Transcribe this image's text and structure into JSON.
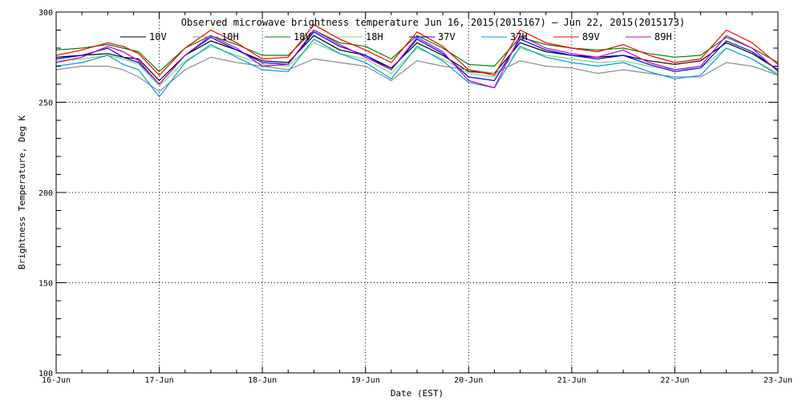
{
  "chart_data": {
    "type": "line",
    "title": "Observed microwave brightness temperature Jun 16, 2015(2015167) – Jun 22, 2015(2015173)",
    "xlabel": "Date (EST)",
    "ylabel": "Brightness Temperature, Deg K",
    "xlim": [
      0,
      7
    ],
    "ylim": [
      100,
      300
    ],
    "x_ticks": [
      {
        "v": 0,
        "label": "16-Jun"
      },
      {
        "v": 1,
        "label": "17-Jun"
      },
      {
        "v": 2,
        "label": "18-Jun"
      },
      {
        "v": 3,
        "label": "19-Jun"
      },
      {
        "v": 4,
        "label": "20-Jun"
      },
      {
        "v": 5,
        "label": "21-Jun"
      },
      {
        "v": 6,
        "label": "22-Jun"
      },
      {
        "v": 7,
        "label": "23-Jun"
      }
    ],
    "y_ticks": [
      {
        "v": 100,
        "label": "100"
      },
      {
        "v": 150,
        "label": "150"
      },
      {
        "v": 200,
        "label": "200"
      },
      {
        "v": 250,
        "label": "250"
      },
      {
        "v": 300,
        "label": "300"
      }
    ],
    "grid": true,
    "legend_position": "top",
    "x_points": [
      0,
      0.25,
      0.5,
      0.65,
      0.8,
      1.0,
      1.25,
      1.5,
      1.75,
      2.0,
      2.25,
      2.5,
      2.75,
      3.0,
      3.25,
      3.5,
      3.75,
      4.0,
      4.25,
      4.5,
      4.75,
      5.0,
      5.25,
      5.5,
      5.75,
      6.0,
      6.25,
      6.5,
      6.75,
      7.0
    ],
    "series": [
      {
        "name": "10V",
        "color": "#000000",
        "values": [
          275,
          276,
          277,
          275,
          274,
          262,
          276,
          284,
          279,
          273,
          272,
          287,
          279,
          276,
          269,
          283,
          276,
          267,
          266,
          283,
          278,
          276,
          275,
          276,
          273,
          271,
          273,
          283,
          277,
          268
        ]
      },
      {
        "name": "10H",
        "color": "#8c8c8c",
        "values": [
          268,
          270,
          270,
          268,
          264,
          256,
          268,
          275,
          272,
          270,
          268,
          274,
          272,
          270,
          262,
          273,
          270,
          268,
          266,
          273,
          270,
          269,
          266,
          268,
          266,
          264,
          264,
          272,
          270,
          265
        ]
      },
      {
        "name": "18V",
        "color": "#008000",
        "values": [
          279,
          280,
          282,
          280,
          278,
          267,
          280,
          287,
          282,
          276,
          276,
          290,
          283,
          281,
          274,
          287,
          280,
          271,
          270,
          286,
          282,
          280,
          279,
          280,
          277,
          275,
          276,
          286,
          280,
          272
        ]
      },
      {
        "name": "18H",
        "color": "#77dd77",
        "values": [
          273,
          274,
          276,
          274,
          271,
          259,
          273,
          281,
          276,
          271,
          270,
          283,
          277,
          274,
          266,
          280,
          274,
          266,
          264,
          280,
          276,
          274,
          272,
          273,
          270,
          268,
          269,
          280,
          274,
          266
        ]
      },
      {
        "name": "37V",
        "color": "#0000ff",
        "values": [
          274,
          276,
          280,
          275,
          272,
          260,
          276,
          286,
          279,
          272,
          271,
          289,
          281,
          276,
          268,
          285,
          277,
          264,
          262,
          285,
          279,
          276,
          274,
          276,
          271,
          267,
          269,
          284,
          278,
          268
        ]
      },
      {
        "name": "37H",
        "color": "#00a0d0",
        "values": [
          270,
          272,
          276,
          271,
          268,
          253,
          272,
          282,
          275,
          268,
          267,
          285,
          277,
          272,
          263,
          281,
          273,
          261,
          258,
          281,
          275,
          272,
          270,
          272,
          267,
          263,
          265,
          280,
          274,
          265
        ]
      },
      {
        "name": "89V",
        "color": "#ff0000",
        "values": [
          276,
          279,
          283,
          281,
          277,
          265,
          280,
          290,
          283,
          274,
          275,
          293,
          285,
          279,
          272,
          289,
          281,
          268,
          265,
          290,
          283,
          280,
          278,
          282,
          276,
          272,
          274,
          290,
          283,
          271
        ]
      },
      {
        "name": "89H",
        "color": "#c000c0",
        "values": [
          272,
          275,
          281,
          278,
          273,
          260,
          276,
          287,
          280,
          270,
          271,
          290,
          282,
          275,
          268,
          286,
          278,
          262,
          258,
          287,
          280,
          277,
          275,
          279,
          272,
          268,
          270,
          287,
          280,
          267
        ]
      }
    ]
  }
}
